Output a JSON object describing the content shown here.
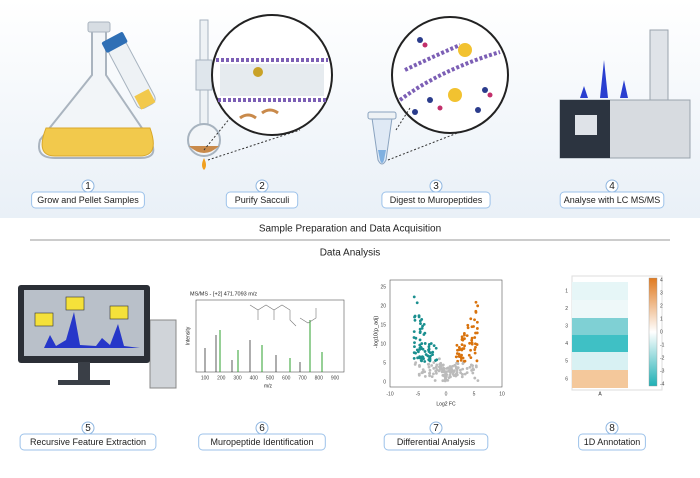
{
  "sections": {
    "top": "Sample Preparation and Data Acquisition",
    "bottom": "Data Analysis"
  },
  "steps": [
    {
      "number": "1",
      "label": "Grow and Pellet Samples"
    },
    {
      "number": "2",
      "label": "Purify Sacculi"
    },
    {
      "number": "3",
      "label": "Digest to Muropeptides"
    },
    {
      "number": "4",
      "label": "Analyse with LC MS/MS"
    },
    {
      "number": "5",
      "label": "Recursive Feature Extraction"
    },
    {
      "number": "6",
      "label": "Muropeptide Identification"
    },
    {
      "number": "7",
      "label": "Differential Analysis"
    },
    {
      "number": "8",
      "label": "1D Annotation"
    }
  ],
  "ms_spectrum": {
    "title": "MS/MS - [+2] 471.7093 m/z",
    "y_label": "Intensity",
    "x_label": "m/z",
    "x_ticks": [
      "100",
      "200",
      "300",
      "400",
      "500",
      "600",
      "700",
      "800",
      "900"
    ]
  },
  "volcano": {
    "y_label": "-log10(p_adj)",
    "x_label": "Log2 FC",
    "y_ticks": [
      "0",
      "5",
      "10",
      "15",
      "20",
      "25"
    ],
    "x_ticks": [
      "-10",
      "-5",
      "0",
      "5",
      "10"
    ]
  },
  "heatmap": {
    "row_labels": [
      "1",
      "2",
      "3",
      "4",
      "5",
      "6"
    ],
    "column_label": "A",
    "colorbar_ticks": [
      "4",
      "3",
      "2",
      "1",
      "0",
      "-1",
      "-2",
      "-3",
      "-4"
    ]
  }
}
